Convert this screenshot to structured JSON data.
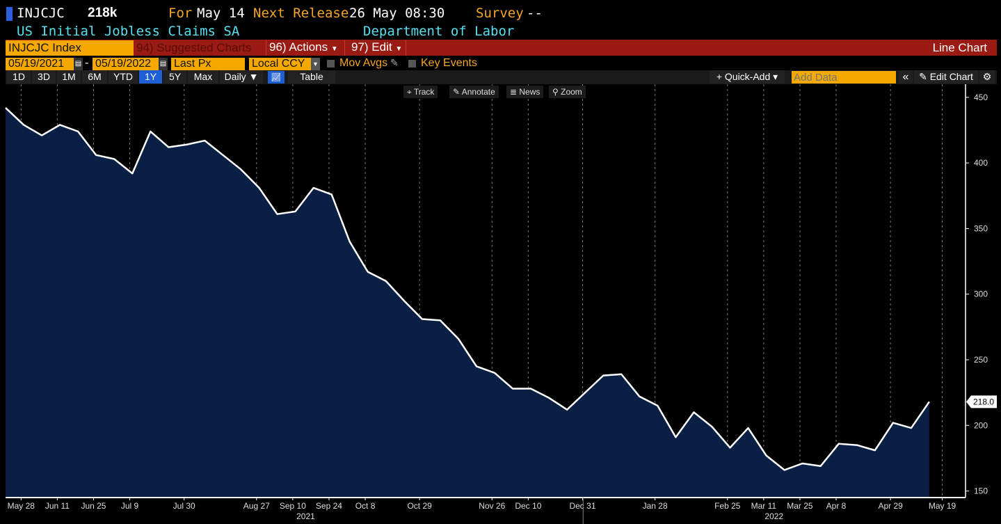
{
  "header": {
    "ticker": "INJCJC",
    "value": "218k",
    "for_label": "For",
    "for_value": "May 14",
    "next_label": "Next Release",
    "next_value": "26 May 08:30",
    "survey_label": "Survey",
    "survey_value": "--",
    "description": "US Initial Jobless Claims SA",
    "source": "Department of Labor"
  },
  "menu": {
    "security": "INJCJC Index",
    "suggested": "94) Suggested Charts",
    "actions": "96) Actions",
    "edit": "97) Edit",
    "chart_type": "Line Chart"
  },
  "controls": {
    "start_date": "05/19/2021",
    "dash": "-",
    "end_date": "05/19/2022",
    "field": "Last Px",
    "currency": "Local CCY",
    "mov_avgs": "Mov Avgs",
    "key_events": "Key Events"
  },
  "periods": [
    "1D",
    "3D",
    "1M",
    "6M",
    "YTD",
    "1Y",
    "5Y",
    "Max"
  ],
  "selected_period": "1Y",
  "frequency": "Daily ▼",
  "table": "Table",
  "quick_add": "+ Quick-Add ▾",
  "add_data_placeholder": "Add Data",
  "edit_chart": "Edit Chart",
  "chart_tools": [
    "Track",
    "Annotate",
    "News",
    "Zoom"
  ],
  "colors": {
    "fill": "#0a1f44",
    "line": "#ffffff",
    "menu_bar": "#9a1a14",
    "field": "#f5a800",
    "accent": "#1f5fd6"
  },
  "chart_data": {
    "type": "area",
    "ylim": [
      145,
      460
    ],
    "yticks": [
      150,
      200,
      250,
      300,
      350,
      400,
      450
    ],
    "xlim": [
      "2021-05-22",
      "2022-05-28"
    ],
    "xticks": [
      {
        "date": "2021-05-28",
        "label": "May 28"
      },
      {
        "date": "2021-06-11",
        "label": "Jun 11"
      },
      {
        "date": "2021-06-25",
        "label": "Jun 25"
      },
      {
        "date": "2021-07-09",
        "label": "Jul 9"
      },
      {
        "date": "2021-07-30",
        "label": "Jul 30"
      },
      {
        "date": "2021-08-27",
        "label": "Aug 27"
      },
      {
        "date": "2021-09-10",
        "label": "Sep 10"
      },
      {
        "date": "2021-09-24",
        "label": "Sep 24"
      },
      {
        "date": "2021-10-08",
        "label": "Oct 8"
      },
      {
        "date": "2021-10-29",
        "label": "Oct 29"
      },
      {
        "date": "2021-11-26",
        "label": "Nov 26"
      },
      {
        "date": "2021-12-10",
        "label": "Dec 10"
      },
      {
        "date": "2021-12-31",
        "label": "Dec 31"
      },
      {
        "date": "2022-01-28",
        "label": "Jan 28"
      },
      {
        "date": "2022-02-25",
        "label": "Feb 25"
      },
      {
        "date": "2022-03-11",
        "label": "Mar 11"
      },
      {
        "date": "2022-03-25",
        "label": "Mar 25"
      },
      {
        "date": "2022-04-08",
        "label": "Apr 8"
      },
      {
        "date": "2022-04-29",
        "label": "Apr 29"
      },
      {
        "date": "2022-05-19",
        "label": "May 19"
      }
    ],
    "years": [
      {
        "date": "2021-09-15",
        "label": "2021"
      },
      {
        "date": "2022-03-15",
        "label": "2022"
      }
    ],
    "last_label": "218.0",
    "grid": true,
    "x": [
      "2021-05-22",
      "2021-05-29",
      "2021-06-05",
      "2021-06-12",
      "2021-06-19",
      "2021-06-26",
      "2021-07-03",
      "2021-07-10",
      "2021-07-17",
      "2021-07-24",
      "2021-07-31",
      "2021-08-07",
      "2021-08-14",
      "2021-08-21",
      "2021-08-28",
      "2021-09-04",
      "2021-09-11",
      "2021-09-18",
      "2021-09-25",
      "2021-10-02",
      "2021-10-09",
      "2021-10-16",
      "2021-10-23",
      "2021-10-30",
      "2021-11-06",
      "2021-11-13",
      "2021-11-20",
      "2021-11-27",
      "2021-12-04",
      "2021-12-11",
      "2021-12-18",
      "2021-12-25",
      "2022-01-01",
      "2022-01-08",
      "2022-01-15",
      "2022-01-22",
      "2022-01-29",
      "2022-02-05",
      "2022-02-12",
      "2022-02-19",
      "2022-02-26",
      "2022-03-05",
      "2022-03-12",
      "2022-03-19",
      "2022-03-26",
      "2022-04-02",
      "2022-04-09",
      "2022-04-16",
      "2022-04-23",
      "2022-04-30",
      "2022-05-07",
      "2022-05-14"
    ],
    "values": [
      442,
      429,
      421,
      429,
      424,
      406,
      403,
      392,
      424,
      412,
      414,
      417,
      406,
      395,
      381,
      361,
      363,
      381,
      376,
      340,
      317,
      310,
      295,
      281,
      280,
      266,
      245,
      240,
      228,
      228,
      221,
      212,
      225,
      238,
      239,
      222,
      215,
      191,
      210,
      199,
      183,
      198,
      177,
      166,
      171,
      169,
      186,
      185,
      181,
      202,
      198,
      218
    ]
  }
}
